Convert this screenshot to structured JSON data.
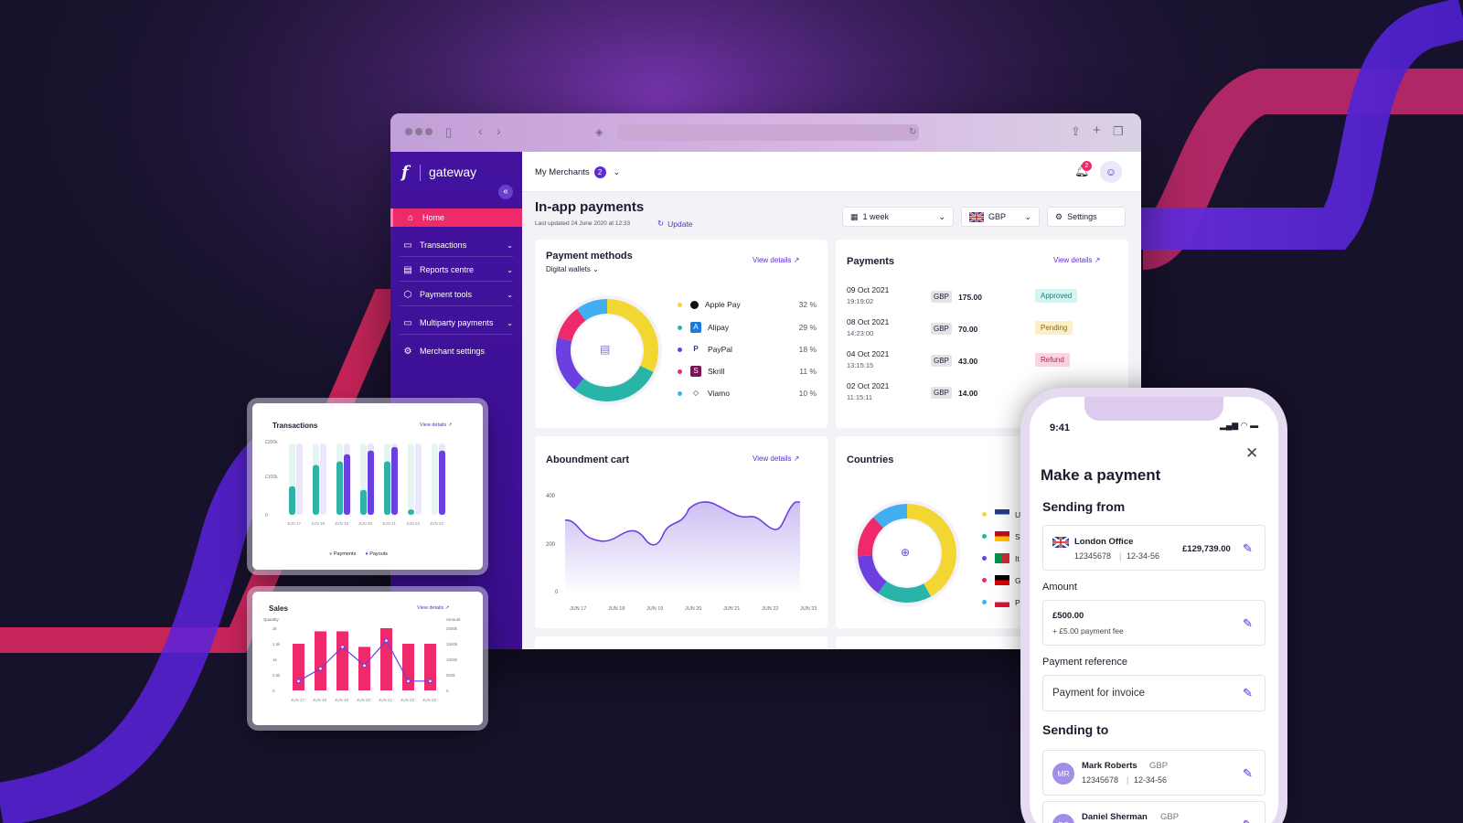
{
  "browser": {
    "brand": "gateway",
    "logo_mark": "f",
    "sidebar": {
      "items": [
        {
          "label": "Home",
          "icon": "home-icon",
          "active": true
        },
        {
          "label": "Transactions",
          "icon": "transactions-icon"
        },
        {
          "label": "Reports centre",
          "icon": "document-icon"
        },
        {
          "label": "Payment tools",
          "icon": "cube-icon"
        },
        {
          "label": "Multiparty payments",
          "icon": "card-icon"
        },
        {
          "label": "Merchant settings",
          "icon": "gear-icon"
        }
      ]
    },
    "topbar": {
      "merchants_label": "My Merchants",
      "merchants_count": "2",
      "notifications_count": "2"
    },
    "header": {
      "title": "In-app payments",
      "last_updated": "Last updated 24 June 2020 at 12:33",
      "update_label": "Update",
      "period": "1 week",
      "currency": "GBP",
      "settings_label": "Settings"
    },
    "payment_methods": {
      "title": "Payment methods",
      "view_details": "View details",
      "filter": "Digital wallets",
      "items": [
        {
          "name": "Apple Pay",
          "pct": "32 %",
          "color": "#f2d733"
        },
        {
          "name": "Alipay",
          "pct": "29 %",
          "color": "#28b5a8"
        },
        {
          "name": "PayPal",
          "pct": "18 %",
          "color": "#6b3fe0"
        },
        {
          "name": "Skrill",
          "pct": "11 %",
          "color": "#ee2a6b"
        },
        {
          "name": "Viamo",
          "pct": "10 %",
          "color": "#42b0f0"
        }
      ]
    },
    "payments": {
      "title": "Payments",
      "view_details": "View details",
      "rows": [
        {
          "date": "09 Oct 2021",
          "time": "19:19:02",
          "cur": "GBP",
          "amount": "175.00",
          "status": "Approved",
          "status_bg": "#d4f5f1",
          "status_fg": "#1d7f75"
        },
        {
          "date": "08 Oct 2021",
          "time": "14:23:00",
          "cur": "GBP",
          "amount": "70.00",
          "status": "Pending",
          "status_bg": "#fcefc8",
          "status_fg": "#8a6b10"
        },
        {
          "date": "04 Oct 2021",
          "time": "13:15:15",
          "cur": "GBP",
          "amount": "43.00",
          "status": "Refund",
          "status_bg": "#fbd4df",
          "status_fg": "#b81f52"
        },
        {
          "date": "02 Oct 2021",
          "time": "11:15:11",
          "cur": "GBP",
          "amount": "14.00",
          "status": "",
          "status_bg": "",
          "status_fg": ""
        }
      ]
    },
    "abandonment": {
      "title": "Aboundment cart",
      "view_details": "View details",
      "yticks": [
        "400",
        "200",
        "0"
      ],
      "xticks": [
        "JUN 17",
        "JUN 18",
        "JUN 19",
        "JUN 20",
        "JUN 21",
        "JUN 22",
        "JUN 23"
      ]
    },
    "countries": {
      "title": "Countries",
      "items": [
        {
          "label": "U",
          "color": "#f2d733"
        },
        {
          "label": "S",
          "color": "#28b5a8"
        },
        {
          "label": "It",
          "color": "#6b3fe0"
        },
        {
          "label": "G",
          "color": "#ee2a6b"
        },
        {
          "label": "Po",
          "color": "#42b0f0"
        }
      ]
    }
  },
  "transactions_card": {
    "title": "Transactions",
    "view_details": "View details",
    "yticks": [
      "£200k",
      "£100k",
      "0"
    ],
    "xticks": [
      "JUN 17",
      "JUN 18",
      "JUN 19",
      "JUN 20",
      "JUN 21",
      "JUN 22",
      "JUN 23"
    ],
    "legend": [
      "Payments",
      "Payouts"
    ]
  },
  "sales_card": {
    "title": "Sales",
    "view_details": "View details",
    "left_axis_title": "Quantity",
    "right_axis_title": "Amount",
    "left_ticks": [
      "2k",
      "1.5k",
      "1k",
      "0.5k",
      "0"
    ],
    "right_ticks": [
      "2000k",
      "1500k",
      "1000k",
      "500k",
      "0"
    ],
    "xticks": [
      "JUN 17",
      "JUN 18",
      "JUN 19",
      "JUN 20",
      "JUN 21",
      "JUN 22",
      "JUN 23"
    ]
  },
  "phone": {
    "time": "9:41",
    "title": "Make a payment",
    "sending_from_label": "Sending from",
    "account_name": "London Office",
    "account_number": "12345678",
    "sort_code": "12-34-56",
    "balance": "£129,739.00",
    "amount_label": "Amount",
    "amount": "£500.00",
    "fee": "+ £5.00 payment fee",
    "reference_label": "Payment reference",
    "reference": "Payment for invoice",
    "sending_to_label": "Sending to",
    "recipients": [
      {
        "initials": "MR",
        "name": "Mark Roberts",
        "cur": "GBP",
        "account": "12345678",
        "sort": "12-34-56"
      },
      {
        "initials": "DS",
        "name": "Daniel Sherman",
        "cur": "GBP"
      }
    ]
  },
  "colors": {
    "accent": "#5b2bd6",
    "pink": "#ee2a6b",
    "teal": "#28b5a8",
    "yellow": "#f2d733",
    "sidebar": "#3f109a"
  }
}
